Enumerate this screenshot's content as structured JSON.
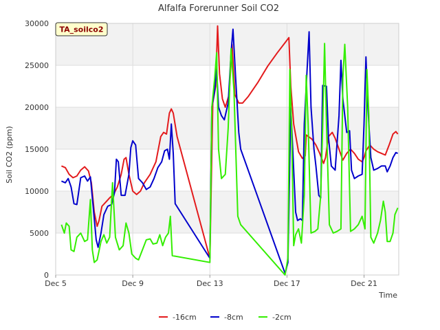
{
  "chart_data": {
    "type": "line",
    "title": "Alfalfa Forerunner Soil CO2",
    "xlabel": "Time",
    "ylabel": "Soil CO2 (ppm)",
    "badge": "TA_soilco2",
    "xlim": [
      5,
      22.8
    ],
    "ylim": [
      0,
      30000
    ],
    "x_ticks": [
      {
        "value": 5,
        "label": "Dec 5"
      },
      {
        "value": 9,
        "label": "Dec 9"
      },
      {
        "value": 13,
        "label": "Dec 13"
      },
      {
        "value": 17,
        "label": "Dec 17"
      },
      {
        "value": 21,
        "label": "Dec 21"
      }
    ],
    "y_ticks": [
      0,
      5000,
      10000,
      15000,
      20000,
      25000,
      30000
    ],
    "series": [
      {
        "name": "-16cm",
        "color": "#e31a1c",
        "points": [
          [
            5.3,
            13000
          ],
          [
            5.5,
            12800
          ],
          [
            5.7,
            12000
          ],
          [
            5.9,
            11600
          ],
          [
            6.1,
            11800
          ],
          [
            6.3,
            12500
          ],
          [
            6.5,
            12900
          ],
          [
            6.7,
            12400
          ],
          [
            6.85,
            11000
          ],
          [
            7.0,
            7500
          ],
          [
            7.15,
            5800
          ],
          [
            7.25,
            6500
          ],
          [
            7.4,
            8200
          ],
          [
            7.6,
            8700
          ],
          [
            7.8,
            9200
          ],
          [
            8.0,
            9600
          ],
          [
            8.2,
            10500
          ],
          [
            8.4,
            12000
          ],
          [
            8.55,
            13800
          ],
          [
            8.65,
            14000
          ],
          [
            8.8,
            12000
          ],
          [
            9.0,
            10000
          ],
          [
            9.2,
            9600
          ],
          [
            9.4,
            10000
          ],
          [
            9.6,
            11000
          ],
          [
            9.9,
            12000
          ],
          [
            10.2,
            13500
          ],
          [
            10.45,
            16500
          ],
          [
            10.6,
            17000
          ],
          [
            10.75,
            16800
          ],
          [
            10.9,
            19300
          ],
          [
            11.0,
            19800
          ],
          [
            11.1,
            19300
          ],
          [
            11.3,
            16500
          ],
          [
            13.0,
            2000
          ],
          [
            13.15,
            20500
          ],
          [
            13.3,
            22500
          ],
          [
            13.4,
            29700
          ],
          [
            13.5,
            24000
          ],
          [
            13.65,
            21000
          ],
          [
            13.8,
            20000
          ],
          [
            14.0,
            21500
          ],
          [
            14.15,
            27500
          ],
          [
            14.3,
            21500
          ],
          [
            14.5,
            20500
          ],
          [
            14.7,
            20500
          ],
          [
            15.0,
            21300
          ],
          [
            15.5,
            23000
          ],
          [
            16.0,
            24900
          ],
          [
            16.5,
            26500
          ],
          [
            16.9,
            27700
          ],
          [
            17.1,
            28300
          ],
          [
            17.2,
            22500
          ],
          [
            17.35,
            18000
          ],
          [
            17.6,
            14700
          ],
          [
            17.8,
            13900
          ],
          [
            17.95,
            14200
          ],
          [
            18.0,
            16700
          ],
          [
            18.3,
            16200
          ],
          [
            18.5,
            15500
          ],
          [
            18.7,
            14500
          ],
          [
            18.9,
            13300
          ],
          [
            19.0,
            14000
          ],
          [
            19.15,
            16500
          ],
          [
            19.35,
            17000
          ],
          [
            19.5,
            16300
          ],
          [
            19.7,
            15000
          ],
          [
            19.9,
            13700
          ],
          [
            20.1,
            14500
          ],
          [
            20.3,
            15000
          ],
          [
            20.5,
            14500
          ],
          [
            20.7,
            13800
          ],
          [
            20.9,
            13500
          ],
          [
            21.0,
            14000
          ],
          [
            21.1,
            14800
          ],
          [
            21.3,
            15500
          ],
          [
            21.5,
            15000
          ],
          [
            21.7,
            14700
          ],
          [
            21.9,
            14500
          ],
          [
            22.1,
            14300
          ],
          [
            22.3,
            15500
          ],
          [
            22.5,
            16800
          ],
          [
            22.65,
            17100
          ],
          [
            22.75,
            16800
          ]
        ]
      },
      {
        "name": "-8cm",
        "color": "#0000cc",
        "points": [
          [
            5.3,
            11200
          ],
          [
            5.5,
            11000
          ],
          [
            5.65,
            11500
          ],
          [
            5.8,
            10500
          ],
          [
            5.95,
            8500
          ],
          [
            6.1,
            8400
          ],
          [
            6.3,
            11600
          ],
          [
            6.5,
            11800
          ],
          [
            6.65,
            11200
          ],
          [
            6.8,
            11700
          ],
          [
            6.95,
            8000
          ],
          [
            7.1,
            4200
          ],
          [
            7.2,
            3300
          ],
          [
            7.35,
            5000
          ],
          [
            7.5,
            7200
          ],
          [
            7.7,
            8200
          ],
          [
            7.9,
            8400
          ],
          [
            8.05,
            9800
          ],
          [
            8.15,
            13800
          ],
          [
            8.25,
            13500
          ],
          [
            8.4,
            9500
          ],
          [
            8.6,
            9500
          ],
          [
            8.8,
            12000
          ],
          [
            8.9,
            15200
          ],
          [
            9.0,
            16000
          ],
          [
            9.15,
            15500
          ],
          [
            9.3,
            11500
          ],
          [
            9.5,
            11000
          ],
          [
            9.7,
            10200
          ],
          [
            9.9,
            10500
          ],
          [
            10.1,
            11500
          ],
          [
            10.3,
            12800
          ],
          [
            10.5,
            13500
          ],
          [
            10.65,
            14800
          ],
          [
            10.8,
            15000
          ],
          [
            10.9,
            13800
          ],
          [
            11.0,
            18000
          ],
          [
            11.1,
            14500
          ],
          [
            11.2,
            8500
          ],
          [
            13.0,
            2000
          ],
          [
            13.1,
            20000
          ],
          [
            13.25,
            22000
          ],
          [
            13.35,
            24500
          ],
          [
            13.45,
            20000
          ],
          [
            13.6,
            19000
          ],
          [
            13.75,
            18500
          ],
          [
            13.95,
            20500
          ],
          [
            14.1,
            26500
          ],
          [
            14.2,
            29300
          ],
          [
            14.35,
            23000
          ],
          [
            14.5,
            17000
          ],
          [
            14.6,
            15000
          ],
          [
            16.9,
            200
          ],
          [
            17.05,
            1500
          ],
          [
            17.2,
            20000
          ],
          [
            17.3,
            15000
          ],
          [
            17.45,
            7500
          ],
          [
            17.55,
            6500
          ],
          [
            17.7,
            6700
          ],
          [
            17.8,
            6500
          ],
          [
            17.9,
            18000
          ],
          [
            18.0,
            22500
          ],
          [
            18.15,
            29000
          ],
          [
            18.25,
            20000
          ],
          [
            18.4,
            15000
          ],
          [
            18.5,
            13000
          ],
          [
            18.65,
            9500
          ],
          [
            18.75,
            9200
          ],
          [
            18.85,
            22600
          ],
          [
            19.05,
            22500
          ],
          [
            19.15,
            16500
          ],
          [
            19.3,
            13000
          ],
          [
            19.5,
            12500
          ],
          [
            19.7,
            19000
          ],
          [
            19.8,
            25600
          ],
          [
            19.9,
            21000
          ],
          [
            20.1,
            17000
          ],
          [
            20.25,
            17200
          ],
          [
            20.35,
            12500
          ],
          [
            20.5,
            11500
          ],
          [
            20.7,
            11800
          ],
          [
            20.9,
            12000
          ],
          [
            21.0,
            18000
          ],
          [
            21.1,
            26000
          ],
          [
            21.2,
            20000
          ],
          [
            21.35,
            14000
          ],
          [
            21.5,
            12500
          ],
          [
            21.7,
            12700
          ],
          [
            21.9,
            13000
          ],
          [
            22.1,
            13000
          ],
          [
            22.2,
            12300
          ],
          [
            22.35,
            13000
          ],
          [
            22.5,
            14000
          ],
          [
            22.65,
            14600
          ],
          [
            22.75,
            14500
          ]
        ]
      },
      {
        "name": "-2cm",
        "color": "#33ee00",
        "points": [
          [
            5.3,
            6000
          ],
          [
            5.45,
            5000
          ],
          [
            5.55,
            6200
          ],
          [
            5.7,
            5800
          ],
          [
            5.8,
            3000
          ],
          [
            5.95,
            2800
          ],
          [
            6.1,
            4500
          ],
          [
            6.3,
            5000
          ],
          [
            6.5,
            4000
          ],
          [
            6.65,
            4200
          ],
          [
            6.8,
            9000
          ],
          [
            6.9,
            3000
          ],
          [
            7.0,
            1500
          ],
          [
            7.15,
            1800
          ],
          [
            7.35,
            4000
          ],
          [
            7.5,
            4800
          ],
          [
            7.65,
            3800
          ],
          [
            7.8,
            4500
          ],
          [
            7.95,
            11000
          ],
          [
            8.1,
            4500
          ],
          [
            8.3,
            3000
          ],
          [
            8.5,
            3500
          ],
          [
            8.65,
            6200
          ],
          [
            8.8,
            5000
          ],
          [
            8.95,
            2500
          ],
          [
            9.15,
            2000
          ],
          [
            9.3,
            1800
          ],
          [
            9.5,
            3000
          ],
          [
            9.7,
            4200
          ],
          [
            9.9,
            4300
          ],
          [
            10.05,
            3700
          ],
          [
            10.25,
            3800
          ],
          [
            10.4,
            4800
          ],
          [
            10.55,
            3500
          ],
          [
            10.7,
            4500
          ],
          [
            10.85,
            5000
          ],
          [
            10.95,
            7000
          ],
          [
            11.05,
            2300
          ],
          [
            13.0,
            1500
          ],
          [
            13.1,
            20000
          ],
          [
            13.25,
            23500
          ],
          [
            13.35,
            26500
          ],
          [
            13.45,
            15000
          ],
          [
            13.6,
            11500
          ],
          [
            13.8,
            12000
          ],
          [
            13.95,
            17500
          ],
          [
            14.1,
            27000
          ],
          [
            14.25,
            22000
          ],
          [
            14.45,
            7000
          ],
          [
            14.6,
            6000
          ],
          [
            16.9,
            0
          ],
          [
            17.05,
            2000
          ],
          [
            17.15,
            24500
          ],
          [
            17.25,
            16500
          ],
          [
            17.35,
            3500
          ],
          [
            17.45,
            4800
          ],
          [
            17.6,
            5500
          ],
          [
            17.75,
            3800
          ],
          [
            17.9,
            9500
          ],
          [
            18.0,
            23800
          ],
          [
            18.1,
            18000
          ],
          [
            18.25,
            5000
          ],
          [
            18.45,
            5200
          ],
          [
            18.6,
            5500
          ],
          [
            18.75,
            9500
          ],
          [
            18.85,
            17500
          ],
          [
            18.95,
            27600
          ],
          [
            19.05,
            18000
          ],
          [
            19.2,
            6000
          ],
          [
            19.4,
            5000
          ],
          [
            19.6,
            5200
          ],
          [
            19.8,
            5500
          ],
          [
            19.9,
            23500
          ],
          [
            20.0,
            27500
          ],
          [
            20.15,
            20000
          ],
          [
            20.3,
            5200
          ],
          [
            20.5,
            5500
          ],
          [
            20.7,
            6000
          ],
          [
            20.9,
            7000
          ],
          [
            21.05,
            5500
          ],
          [
            21.15,
            24500
          ],
          [
            21.25,
            19000
          ],
          [
            21.35,
            4500
          ],
          [
            21.5,
            3800
          ],
          [
            21.7,
            5000
          ],
          [
            21.85,
            6500
          ],
          [
            22.0,
            8800
          ],
          [
            22.1,
            7500
          ],
          [
            22.2,
            4000
          ],
          [
            22.35,
            4000
          ],
          [
            22.5,
            5000
          ],
          [
            22.6,
            7200
          ],
          [
            22.75,
            8000
          ]
        ]
      }
    ]
  }
}
